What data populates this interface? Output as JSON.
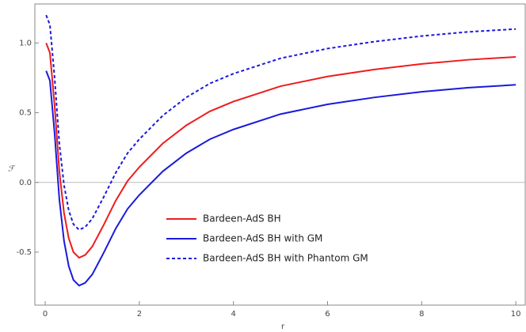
{
  "chart_data": {
    "type": "line",
    "x_label": "r",
    "y_label": "ℱ",
    "x": [
      0.02,
      0.1,
      0.2,
      0.3,
      0.4,
      0.5,
      0.6,
      0.72,
      0.85,
      1.0,
      1.25,
      1.5,
      1.75,
      2,
      2.5,
      3,
      3.5,
      4,
      5,
      6,
      7,
      8,
      9,
      10
    ],
    "series": [
      {
        "name": "Bardeen-AdS BH",
        "color": "#ee1c1c",
        "linestyle": "solid",
        "values": [
          1.0,
          0.93,
          0.55,
          0.08,
          -0.22,
          -0.4,
          -0.5,
          -0.54,
          -0.52,
          -0.46,
          -0.3,
          -0.13,
          0.01,
          0.11,
          0.28,
          0.41,
          0.51,
          0.58,
          0.69,
          0.76,
          0.81,
          0.85,
          0.88,
          0.9
        ]
      },
      {
        "name": "Bardeen-AdS BH with GM",
        "color": "#1a1adc",
        "linestyle": "solid",
        "values": [
          0.8,
          0.73,
          0.35,
          -0.12,
          -0.42,
          -0.6,
          -0.7,
          -0.74,
          -0.72,
          -0.66,
          -0.5,
          -0.33,
          -0.19,
          -0.09,
          0.08,
          0.21,
          0.31,
          0.38,
          0.49,
          0.56,
          0.61,
          0.65,
          0.68,
          0.7
        ]
      },
      {
        "name": "Bardeen-AdS BH with Phantom GM",
        "color": "#1a1adc",
        "linestyle": "dashed",
        "values": [
          1.2,
          1.13,
          0.75,
          0.28,
          -0.02,
          -0.2,
          -0.3,
          -0.34,
          -0.32,
          -0.26,
          -0.1,
          0.07,
          0.21,
          0.31,
          0.48,
          0.61,
          0.71,
          0.78,
          0.89,
          0.96,
          1.01,
          1.05,
          1.08,
          1.1
        ]
      }
    ],
    "xlim": [
      -0.22,
      10.2
    ],
    "ylim": [
      -0.88,
      1.28
    ],
    "xticks": [
      0,
      2,
      4,
      6,
      8,
      10
    ],
    "yticks": [
      -0.5,
      {
        "value": 0,
        "label": "0.0"
      },
      0.5,
      {
        "value": 1,
        "label": "1.0"
      }
    ],
    "zero_line": true
  }
}
